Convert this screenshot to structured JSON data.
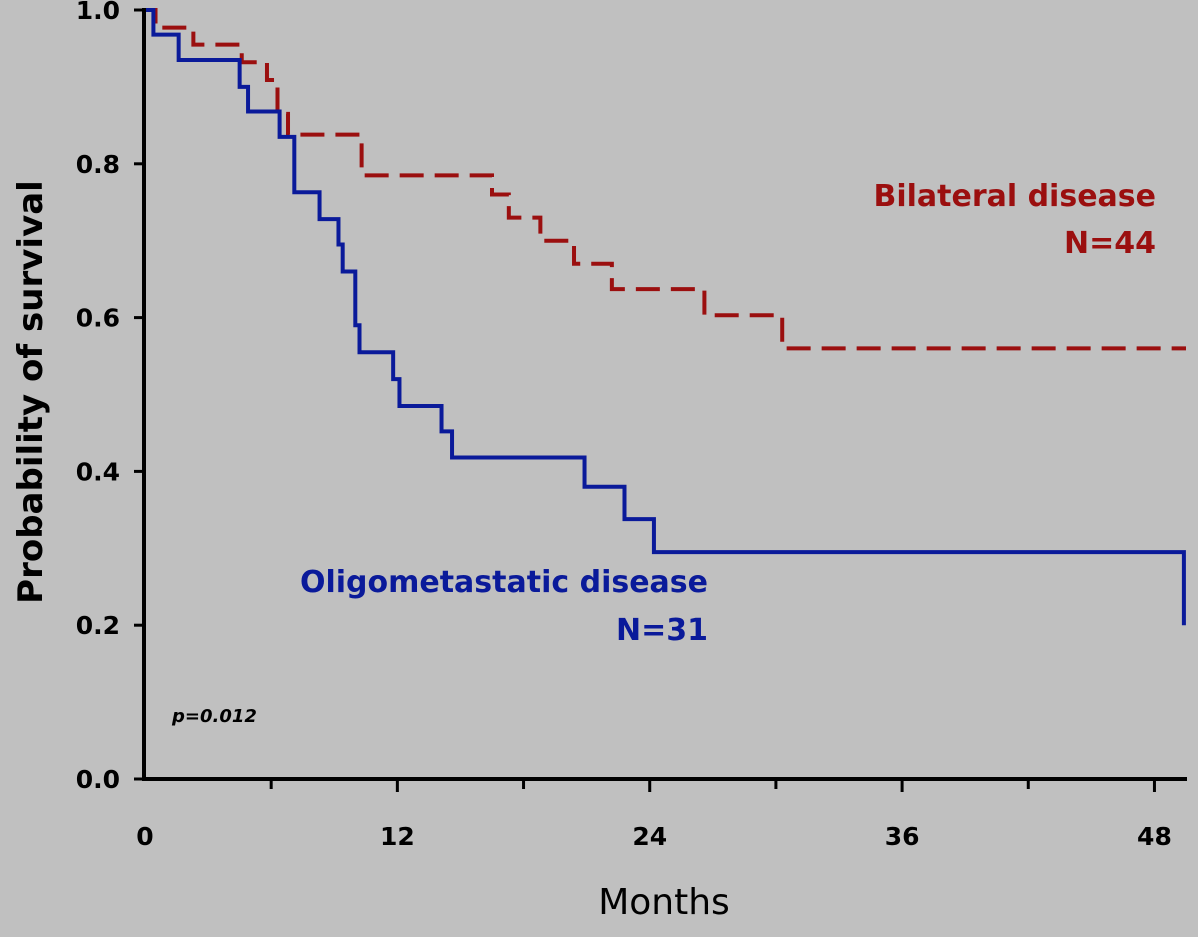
{
  "chart_data": {
    "type": "line",
    "subtype": "kaplan-meier",
    "xlabel": "Months",
    "ylabel": "Probability of survival",
    "xlim": [
      0,
      49.5
    ],
    "ylim": [
      0,
      1.0
    ],
    "x_ticks": [
      0,
      12,
      24,
      36,
      48
    ],
    "x_tick_labels": [
      "0",
      "12",
      "24",
      "36",
      "48"
    ],
    "y_ticks": [
      0.0,
      0.2,
      0.4,
      0.6,
      0.8,
      1.0
    ],
    "y_tick_labels": [
      "0.0",
      "0.2",
      "0.4",
      "0.6",
      "0.8",
      "1.0"
    ],
    "grid": false,
    "annotation": "p=0.012",
    "series": [
      {
        "name": "Bilateral disease",
        "n_label": "N=44",
        "color": "#9b0f0f",
        "line_style": "dashed",
        "steps": [
          [
            0,
            1.0
          ],
          [
            0.5,
            0.977
          ],
          [
            2.3,
            0.955
          ],
          [
            4.6,
            0.932
          ],
          [
            5.8,
            0.909
          ],
          [
            6.3,
            0.865
          ],
          [
            6.8,
            0.838
          ],
          [
            10.3,
            0.785
          ],
          [
            16.5,
            0.76
          ],
          [
            17.3,
            0.73
          ],
          [
            18.8,
            0.7
          ],
          [
            20.4,
            0.67
          ],
          [
            22.2,
            0.637
          ],
          [
            26.6,
            0.603
          ],
          [
            30.3,
            0.56
          ],
          [
            49.5,
            0.56
          ]
        ]
      },
      {
        "name": "Oligometastatic disease",
        "n_label": "N=31",
        "color": "#0a1a9a",
        "line_style": "solid",
        "steps": [
          [
            0,
            1.0
          ],
          [
            0.4,
            0.968
          ],
          [
            1.6,
            0.935
          ],
          [
            4.5,
            0.9
          ],
          [
            4.9,
            0.868
          ],
          [
            6.4,
            0.835
          ],
          [
            7.1,
            0.763
          ],
          [
            8.3,
            0.728
          ],
          [
            9.2,
            0.695
          ],
          [
            9.4,
            0.66
          ],
          [
            10.0,
            0.59
          ],
          [
            10.2,
            0.555
          ],
          [
            11.8,
            0.52
          ],
          [
            12.1,
            0.485
          ],
          [
            14.1,
            0.452
          ],
          [
            14.6,
            0.418
          ],
          [
            20.9,
            0.38
          ],
          [
            22.8,
            0.338
          ],
          [
            24.2,
            0.295
          ],
          [
            49.4,
            0.295
          ],
          [
            49.4,
            0.2
          ]
        ]
      }
    ]
  }
}
